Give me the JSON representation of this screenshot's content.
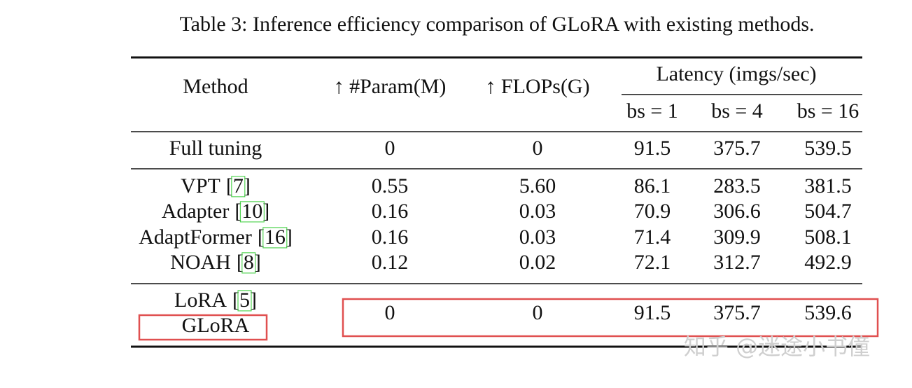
{
  "caption": "Table 3: Inference efficiency comparison of GLoRA with existing methods.",
  "table": {
    "header": {
      "method": "Method",
      "param": "↑ #Param(M)",
      "flops": "↑ FLOPs(G)",
      "latency": "Latency (imgs/sec)",
      "bs": [
        "bs = 1",
        "bs = 4",
        "bs = 16"
      ]
    },
    "groups": [
      {
        "rows": [
          {
            "method": "Full tuning",
            "values": [
              "0",
              "0",
              "91.5",
              "375.7",
              "539.5"
            ]
          }
        ]
      },
      {
        "rows": [
          {
            "method": "VPT",
            "cite": "[7]",
            "values": [
              "0.55",
              "5.60",
              "86.1",
              "283.5",
              "381.5"
            ]
          },
          {
            "method": "Adapter",
            "cite": "[10]",
            "values": [
              "0.16",
              "0.03",
              "70.9",
              "306.6",
              "504.7"
            ]
          },
          {
            "method": "AdaptFormer",
            "cite": "[16]",
            "values": [
              "0.16",
              "0.03",
              "71.4",
              "309.9",
              "508.1"
            ]
          },
          {
            "method": "NOAH",
            "cite": "[8]",
            "values": [
              "0.12",
              "0.02",
              "72.1",
              "312.7",
              "492.9"
            ]
          }
        ]
      },
      {
        "rows": [
          {
            "method": "LoRA",
            "cite": "[5]"
          },
          {
            "method": "GLoRA"
          }
        ],
        "shared_values": [
          "0",
          "0",
          "91.5",
          "375.7",
          "539.6"
        ]
      }
    ]
  },
  "watermark": "知乎 @迷途小书僮"
}
